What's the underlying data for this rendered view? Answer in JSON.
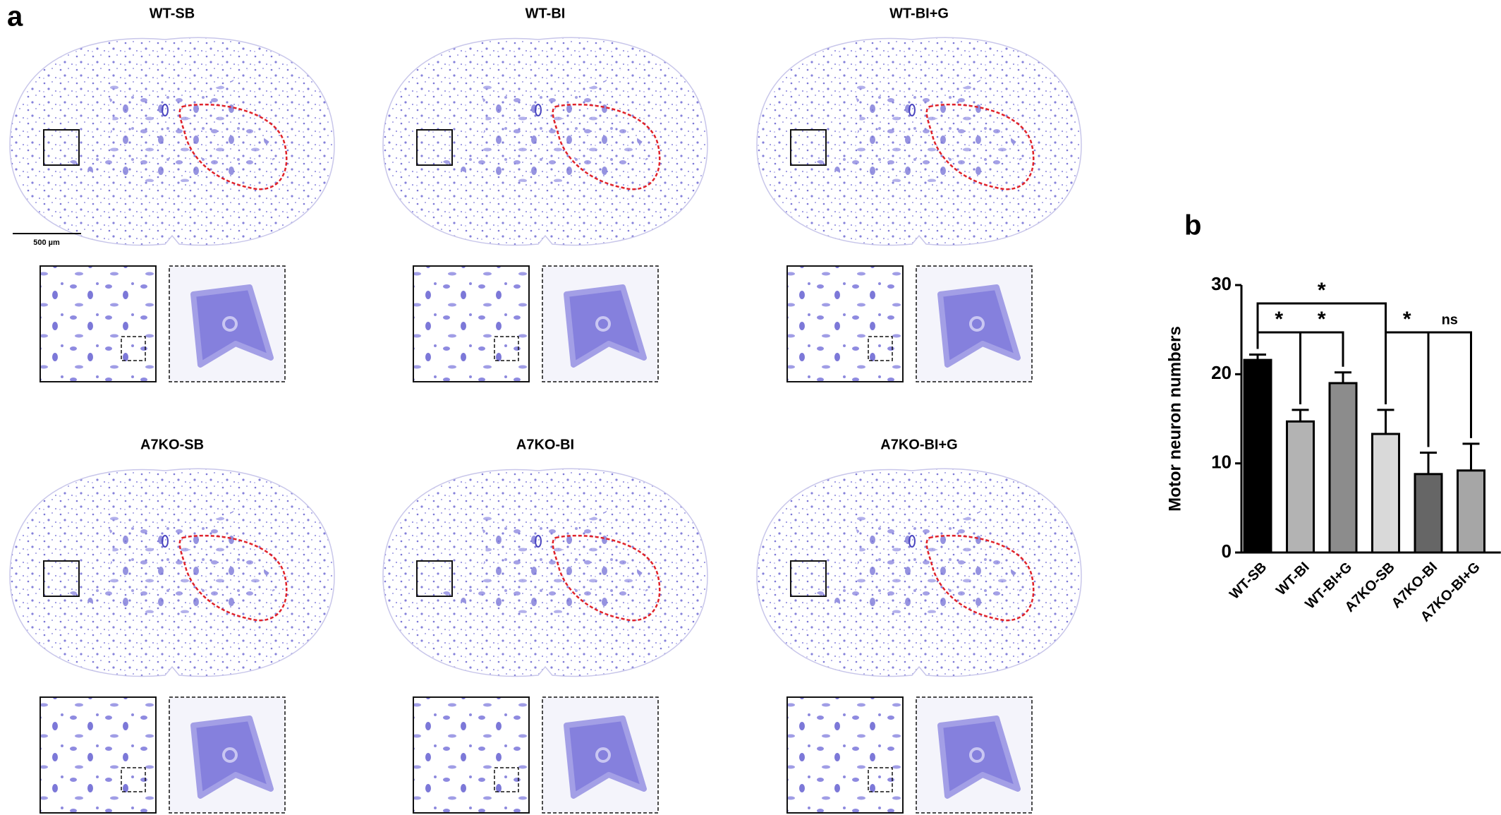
{
  "panel_labels": [
    "a",
    "b"
  ],
  "micrographs": [
    {
      "label": "WT-SB"
    },
    {
      "label": "WT-BI"
    },
    {
      "label": "WT-BI+G"
    },
    {
      "label": "A7KO-SB"
    },
    {
      "label": "A7KO-BI"
    },
    {
      "label": "A7KO-BI+G"
    }
  ],
  "scale_bar": "500 µm",
  "chart_data": {
    "type": "bar",
    "ylabel": "Motor neuron numbers",
    "categories": [
      "WT-SB",
      "WT-BI",
      "WT-BI+G",
      "A7KO-SB",
      "A7KO-BI",
      "A7KO-BI+G"
    ],
    "values": [
      21.6,
      14.7,
      19.0,
      13.3,
      8.8,
      9.2
    ],
    "errors": [
      0.6,
      1.3,
      1.2,
      2.7,
      2.4,
      3.0
    ],
    "colors": [
      "#000000",
      "#b3b3b3",
      "#8c8c8c",
      "#d9d9d9",
      "#666666",
      "#a6a6a6"
    ],
    "ylim": [
      0,
      30
    ],
    "yticks": [
      0,
      10,
      20,
      30
    ],
    "comparisons": [
      {
        "pair": [
          "WT-SB",
          "A7KO-SB"
        ],
        "label": "*"
      },
      {
        "pair": [
          "WT-SB",
          "WT-BI"
        ],
        "label": "*"
      },
      {
        "pair": [
          "WT-BI",
          "WT-BI+G"
        ],
        "label": "*"
      },
      {
        "pair": [
          "A7KO-SB",
          "A7KO-BI"
        ],
        "label": "*"
      },
      {
        "pair": [
          "A7KO-BI",
          "A7KO-BI+G"
        ],
        "label": "ns"
      }
    ]
  }
}
